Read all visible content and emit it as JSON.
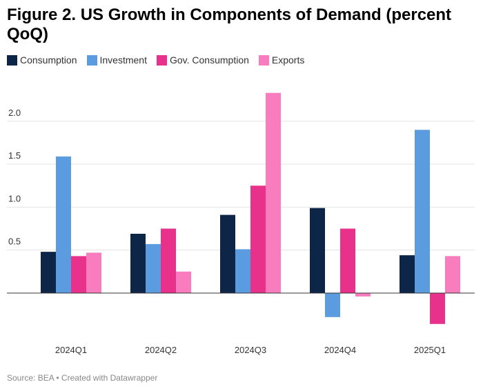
{
  "chart_data": {
    "type": "bar",
    "title": "Figure 2. US Growth in Components of Demand (percent QoQ)",
    "source": "Source: BEA • Created with Datawrapper",
    "categories": [
      "2024Q1",
      "2024Q2",
      "2024Q3",
      "2024Q4",
      "2025Q1"
    ],
    "series": [
      {
        "name": "Consumption",
        "color": "#0d2546",
        "values": [
          0.48,
          0.69,
          0.91,
          0.99,
          0.44
        ]
      },
      {
        "name": "Investment",
        "color": "#5b9be0",
        "values": [
          1.59,
          0.57,
          0.51,
          -0.28,
          1.9
        ]
      },
      {
        "name": "Gov. Consumption",
        "color": "#e8318a",
        "values": [
          0.43,
          0.75,
          1.25,
          0.75,
          -0.36
        ]
      },
      {
        "name": "Exports",
        "color": "#f97cbf",
        "values": [
          0.47,
          0.25,
          2.33,
          -0.04,
          0.43
        ]
      }
    ],
    "ylim": [
      -0.45,
      2.4
    ],
    "yticks": [
      0.5,
      {
        "value": 1,
        "label": "1.0"
      },
      1.5,
      {
        "value": 2,
        "label": "2.0"
      }
    ],
    "grid": true
  }
}
